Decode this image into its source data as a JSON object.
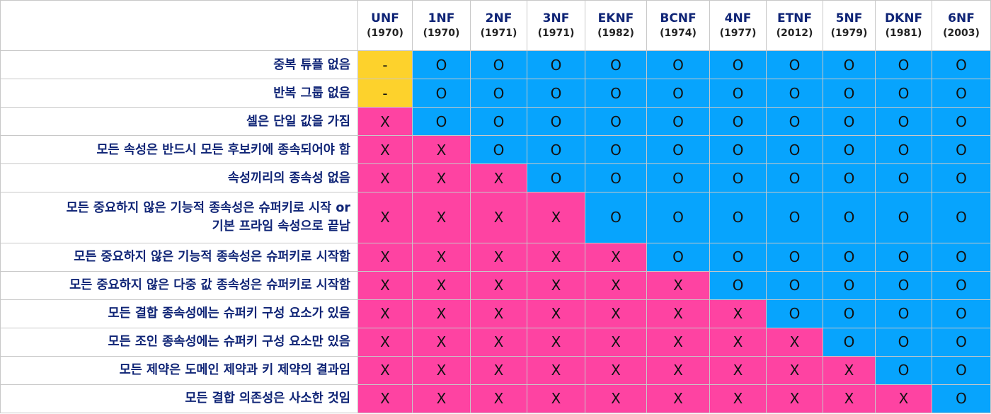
{
  "colors": {
    "dash": "#fdd22c",
    "o": "#07a4fd",
    "x": "#fe43a2",
    "header_text": "#0f2476"
  },
  "forms": [
    {
      "name": "UNF",
      "year": "(1970)"
    },
    {
      "name": "1NF",
      "year": "(1970)"
    },
    {
      "name": "2NF",
      "year": "(1971)"
    },
    {
      "name": "3NF",
      "year": "(1971)"
    },
    {
      "name": "EKNF",
      "year": "(1982)"
    },
    {
      "name": "BCNF",
      "year": "(1974)"
    },
    {
      "name": "4NF",
      "year": "(1977)"
    },
    {
      "name": "ETNF",
      "year": "(2012)"
    },
    {
      "name": "5NF",
      "year": "(1979)"
    },
    {
      "name": "DKNF",
      "year": "(1981)"
    },
    {
      "name": "6NF",
      "year": "(2003)"
    }
  ],
  "rows": [
    {
      "label": "중복 튜플 없음",
      "values": [
        "-",
        "O",
        "O",
        "O",
        "O",
        "O",
        "O",
        "O",
        "O",
        "O",
        "O"
      ]
    },
    {
      "label": "반복 그룹 없음",
      "values": [
        "-",
        "O",
        "O",
        "O",
        "O",
        "O",
        "O",
        "O",
        "O",
        "O",
        "O"
      ]
    },
    {
      "label": "셀은 단일 값을 가짐",
      "values": [
        "X",
        "O",
        "O",
        "O",
        "O",
        "O",
        "O",
        "O",
        "O",
        "O",
        "O"
      ]
    },
    {
      "label": "모든 속성은 반드시 모든 후보키에 종속되어야 함",
      "values": [
        "X",
        "X",
        "O",
        "O",
        "O",
        "O",
        "O",
        "O",
        "O",
        "O",
        "O"
      ]
    },
    {
      "label": "속성끼리의 종속성 없음",
      "values": [
        "X",
        "X",
        "X",
        "O",
        "O",
        "O",
        "O",
        "O",
        "O",
        "O",
        "O"
      ]
    },
    {
      "label": "모든 중요하지 않은 기능적 종속성은 슈퍼키로 시작 or\n기본 프라임 속성으로 끝남",
      "values": [
        "X",
        "X",
        "X",
        "X",
        "O",
        "O",
        "O",
        "O",
        "O",
        "O",
        "O"
      ]
    },
    {
      "label": "모든 중요하지 않은 기능적 종속성은 슈퍼키로 시작함",
      "values": [
        "X",
        "X",
        "X",
        "X",
        "X",
        "O",
        "O",
        "O",
        "O",
        "O",
        "O"
      ]
    },
    {
      "label": "모든 중요하지 않은 다중 값 종속성은 슈퍼키로 시작함",
      "values": [
        "X",
        "X",
        "X",
        "X",
        "X",
        "X",
        "O",
        "O",
        "O",
        "O",
        "O"
      ]
    },
    {
      "label": "모든 결합 종속성에는 슈퍼키 구성 요소가 있음",
      "values": [
        "X",
        "X",
        "X",
        "X",
        "X",
        "X",
        "X",
        "O",
        "O",
        "O",
        "O"
      ]
    },
    {
      "label": "모든 조인 종속성에는 슈퍼키 구성 요소만 있음",
      "values": [
        "X",
        "X",
        "X",
        "X",
        "X",
        "X",
        "X",
        "X",
        "O",
        "O",
        "O"
      ]
    },
    {
      "label": "모든 제약은 도메인 제약과 키 제약의 결과임",
      "values": [
        "X",
        "X",
        "X",
        "X",
        "X",
        "X",
        "X",
        "X",
        "X",
        "O",
        "O"
      ]
    },
    {
      "label": "모든 결합 의존성은 사소한 것임",
      "values": [
        "X",
        "X",
        "X",
        "X",
        "X",
        "X",
        "X",
        "X",
        "X",
        "X",
        "O"
      ]
    }
  ]
}
